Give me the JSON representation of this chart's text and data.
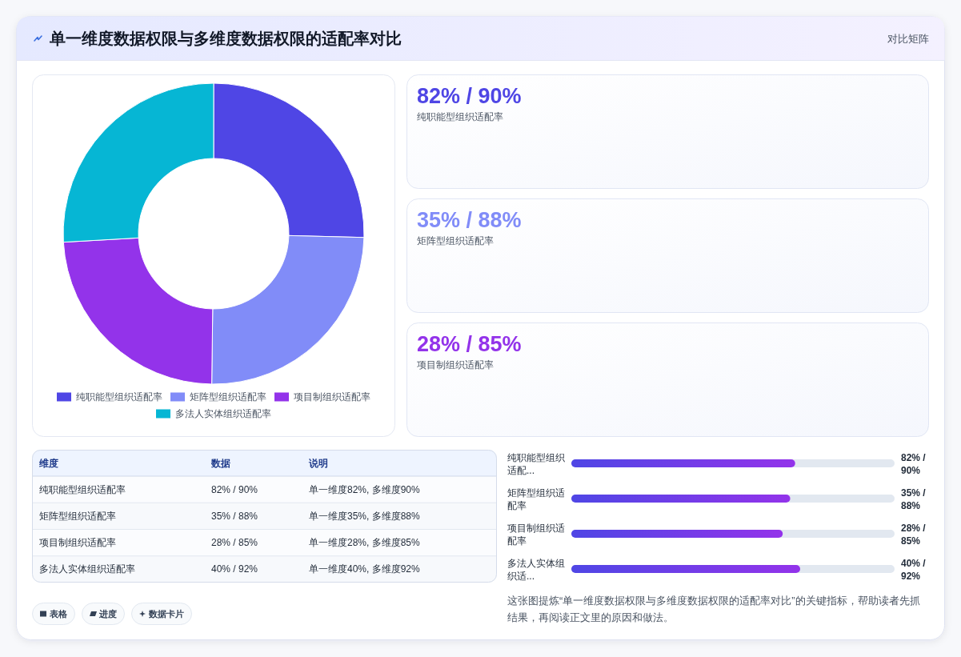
{
  "chart_data": [
    {
      "type": "other",
      "title": "单一维度数据权限与多维度数据权限的适配率对比",
      "annotations": [
        "对比矩阵"
      ]
    },
    {
      "type": "donut",
      "categories": [
        "纯职能型组织适配率",
        "矩阵型组织适配率",
        "项目制组织适配率",
        "多法人实体组织适配率"
      ],
      "values": [
        25.4,
        24.8,
        23.9,
        25.9
      ],
      "colors": [
        "#4f46e5",
        "#818cf8",
        "#9333ea",
        "#06b6d4"
      ],
      "legend": "bottom"
    },
    {
      "type": "other",
      "title": "82% / 90%",
      "subtitle": "纯职能型组织适配率",
      "color": "#4f46e5"
    },
    {
      "type": "other",
      "title": "35% / 88%",
      "subtitle": "矩阵型组织适配率",
      "color": "#818cf8"
    },
    {
      "type": "other",
      "title": "28% / 85%",
      "subtitle": "项目制组织适配率",
      "color": "#9333ea"
    },
    {
      "type": "other",
      "categories": [
        "维度",
        "数据",
        "说明"
      ],
      "annotations": [
        "纯职能型组织适配率",
        "82% / 90%",
        "单一维度82%, 多维度90%",
        "矩阵型组织适配率",
        "35% / 88%",
        "单一维度35%, 多维度88%",
        "项目制组织适配率",
        "28% / 85%",
        "单一维度28%, 多维度85%",
        "多法人实体组织适配率",
        "40% / 92%",
        "单一维度40%, 多维度92%"
      ]
    },
    {
      "type": "bar",
      "orientation": "horizontal",
      "categories": [
        "纯职能型组织适配...",
        "矩阵型组织适配率",
        "项目制组织适配率",
        "多法人实体组织适..."
      ],
      "values": [
        90,
        88,
        85,
        92
      ],
      "value_labels": [
        "82% / 90%",
        "35% / 88%",
        "28% / 85%",
        "40% / 92%"
      ],
      "color": "#4f46e5",
      "annotations": [
        "这张图提炼“单一维度数据权限与多维度数据权限的适配率对比”的关键指标，帮助读者先抓结果，再阅读正文里的原因和做法。"
      ]
    },
    {
      "type": "other",
      "annotations": [
        "表格",
        "进度",
        "数据卡片"
      ]
    }
  ]
}
